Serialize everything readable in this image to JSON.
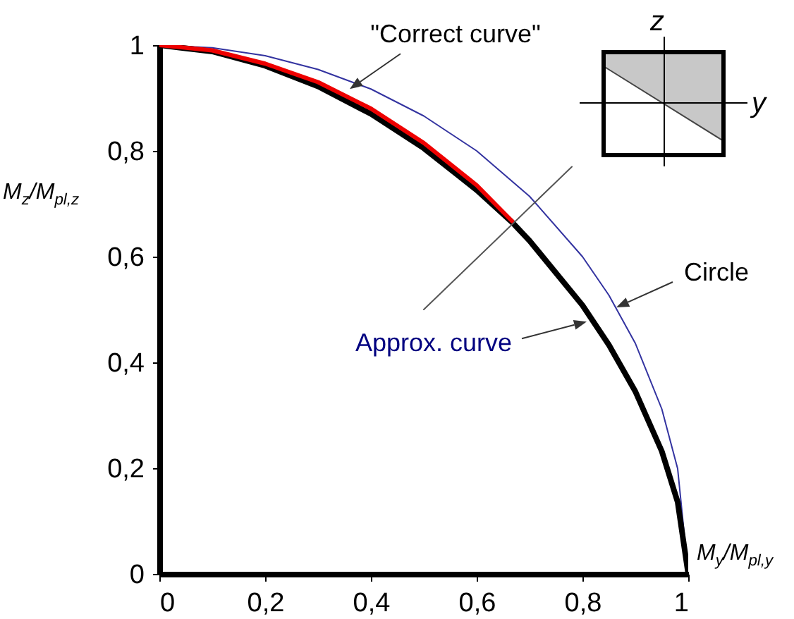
{
  "chart_data": {
    "type": "line",
    "xlabel": "M$_{y}$/M$_{pl,y}$",
    "ylabel": "M$_{z}$/M$_{pl,z}$",
    "xlim": [
      0,
      1
    ],
    "ylim": [
      0,
      1
    ],
    "xticks": [
      0,
      {
        "value": 0.2,
        "label": "0,2"
      },
      {
        "value": 0.4,
        "label": "0,4"
      },
      {
        "value": 0.6,
        "label": "0,6"
      },
      {
        "value": 0.8,
        "label": "0,8"
      },
      1
    ],
    "yticks": [
      0,
      {
        "value": 0.2,
        "label": "0,2"
      },
      {
        "value": 0.4,
        "label": "0,4"
      },
      {
        "value": 0.6,
        "label": "0,6"
      },
      {
        "value": 0.8,
        "label": "0,8"
      },
      1
    ],
    "grid": false,
    "series": [
      {
        "color": "#3333a0",
        "x": [
          0,
          0.1,
          0.2,
          0.3,
          0.4,
          0.5,
          0.6,
          0.7,
          0.8,
          0.85,
          0.9,
          0.95,
          0.98,
          1
        ],
        "values": [
          1,
          0.995,
          0.98,
          0.954,
          0.917,
          0.866,
          0.8,
          0.714,
          0.6,
          0.527,
          0.436,
          0.312,
          0.199,
          0
        ]
      },
      {
        "color": "#000000",
        "x": [
          0,
          0.1,
          0.2,
          0.3,
          0.4,
          0.5,
          0.6,
          0.667,
          0.7,
          0.8,
          0.85,
          0.9,
          0.95,
          0.98,
          1
        ],
        "values": [
          1,
          0.988,
          0.961,
          0.922,
          0.87,
          0.805,
          0.726,
          0.665,
          0.63,
          0.508,
          0.433,
          0.345,
          0.232,
          0.136,
          0
        ]
      },
      {
        "color": "#ee0000",
        "x": [
          0,
          0.1,
          0.2,
          0.3,
          0.4,
          0.5,
          0.6,
          0.667
        ],
        "values": [
          1,
          0.99,
          0.965,
          0.93,
          0.88,
          0.815,
          0.735,
          0.667
        ]
      },
      {
        "color": "#555555",
        "x": [
          0.5,
          0.78
        ],
        "values": [
          0.5,
          0.77
        ]
      }
    ],
    "annotations": [
      {
        "text": "\"Correct curve\"",
        "x": 0.36,
        "y": 0.917
      },
      {
        "text": "Circle",
        "x": 0.864,
        "y": 0.504
      },
      {
        "text": "Approx. curve",
        "x": 0.808,
        "y": 0.477
      },
      "z",
      "y"
    ]
  }
}
